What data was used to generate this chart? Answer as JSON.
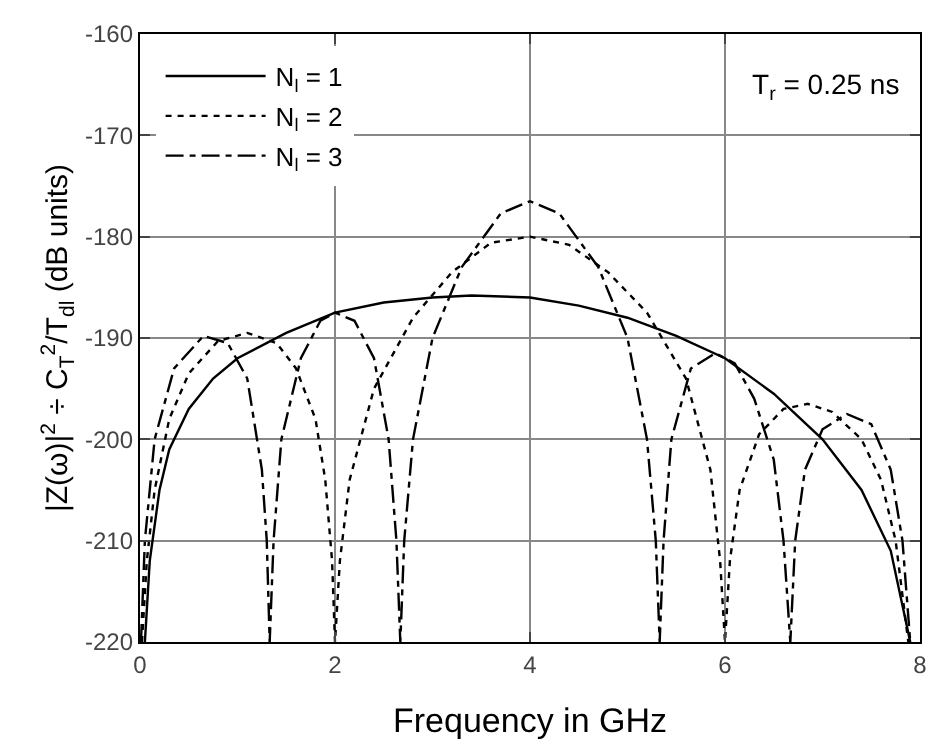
{
  "chart_data": {
    "type": "line",
    "xlabel": "Frequency in GHz",
    "ylabel": "|Z(ω)|$^{2}$ ÷ C$_{T}$$^{2}$/T$_{dl}$ (dB units)",
    "xlim": [
      0,
      8
    ],
    "xticks": [
      0,
      2,
      4,
      6,
      8
    ],
    "ylim": [
      -220,
      -160
    ],
    "yticks": [
      -220,
      -210,
      -200,
      -190,
      -180,
      -170,
      -160
    ],
    "grid": true,
    "legend": "top left",
    "marker": "none",
    "annotations": [
      "T$_{r}$ = 0.25 ns"
    ],
    "series": [
      {
        "name": "N$_{l}$ = 1",
        "color": "#000000",
        "line_style": "solid",
        "x": [
          0.05,
          0.1,
          0.2,
          0.3,
          0.5,
          0.75,
          1,
          1.5,
          2,
          2.5,
          3,
          3.4,
          4,
          4.5,
          5,
          5.5,
          6,
          6.5,
          7,
          7.4,
          7.7,
          7.9
        ],
        "values": [
          -220,
          -212,
          -205,
          -201,
          -197,
          -194,
          -192,
          -189.5,
          -187.5,
          -186.5,
          -186,
          -185.8,
          -186,
          -186.8,
          -188,
          -189.8,
          -192,
          -195.5,
          -200,
          -205,
          -211,
          -220
        ]
      },
      {
        "name": "N$_{l}$ = 2",
        "color": "#000000",
        "line_style": "dotted",
        "x": [
          0.02,
          0.07,
          0.15,
          0.3,
          0.5,
          0.8,
          1.1,
          1.4,
          1.6,
          1.8,
          1.9,
          1.97,
          2.0,
          2.05,
          2.15,
          2.4,
          2.8,
          3.2,
          3.6,
          4,
          4.4,
          4.8,
          5.2,
          5.6,
          5.85,
          5.95,
          6.0,
          6.05,
          6.15,
          6.35,
          6.6,
          6.85,
          7.1,
          7.4,
          7.6,
          7.75,
          7.88
        ],
        "values": [
          -220,
          -212,
          -205,
          -198,
          -193.5,
          -190.3,
          -189.5,
          -190.5,
          -193,
          -198,
          -204,
          -212,
          -220,
          -212,
          -204,
          -195,
          -188,
          -183.5,
          -180.6,
          -180,
          -180.8,
          -183.5,
          -187.5,
          -194,
          -203,
          -212,
          -220,
          -212,
          -205,
          -199.5,
          -197,
          -196.5,
          -197.3,
          -200,
          -204,
          -210,
          -220
        ]
      },
      {
        "name": "N$_{l}$ = 3",
        "color": "#000000",
        "line_style": "dashdot",
        "x": [
          0.01,
          0.05,
          0.15,
          0.35,
          0.65,
          0.9,
          1.1,
          1.25,
          1.3,
          1.33,
          1.37,
          1.45,
          1.65,
          1.85,
          2.0,
          2.2,
          2.4,
          2.55,
          2.63,
          2.67,
          2.71,
          2.8,
          3.0,
          3.3,
          3.7,
          4,
          4.3,
          4.7,
          5.0,
          5.2,
          5.29,
          5.33,
          5.37,
          5.45,
          5.65,
          5.9,
          6.1,
          6.3,
          6.5,
          6.6,
          6.67,
          6.72,
          6.82,
          7.0,
          7.25,
          7.5,
          7.7,
          7.82,
          7.9
        ],
        "values": [
          -220,
          -210,
          -200,
          -193,
          -189.8,
          -190.5,
          -194,
          -203,
          -210,
          -220,
          -210,
          -200,
          -192,
          -188.3,
          -187.5,
          -188.3,
          -192,
          -200,
          -210,
          -220,
          -210,
          -200,
          -190,
          -183,
          -177.7,
          -176.5,
          -177.7,
          -183,
          -190,
          -200,
          -210,
          -220,
          -210,
          -200,
          -193,
          -191.5,
          -192.5,
          -196,
          -202,
          -210,
          -220,
          -210,
          -203,
          -199,
          -197.5,
          -198.5,
          -203,
          -210,
          -220
        ]
      }
    ]
  }
}
